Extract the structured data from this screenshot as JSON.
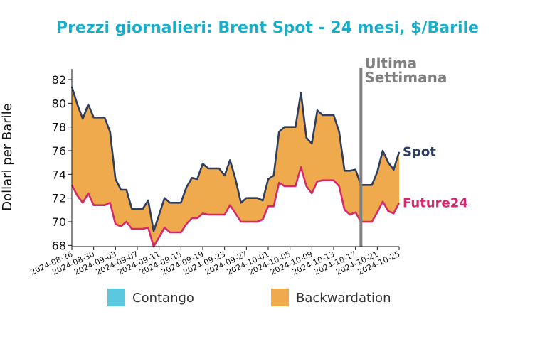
{
  "chart_data": {
    "type": "area",
    "title": "Prezzi giornalieri: Brent Spot - 24 mesi, $/Barile",
    "ylabel": "Dollari per Barile",
    "xlabel": "",
    "ylim": [
      67.9,
      82.9
    ],
    "yticks": [
      68,
      70,
      72,
      74,
      76,
      78,
      80,
      82
    ],
    "xtick_labels": [
      "2024-08-26",
      "2024-08-30",
      "2024-09-03",
      "2024-09-07",
      "2024-09-11",
      "2024-09-15",
      "2024-09-19",
      "2024-09-23",
      "2024-09-27",
      "2024-10-01",
      "2024-10-05",
      "2024-10-09",
      "2024-10-13",
      "2024-10-17",
      "2024-10-21",
      "2024-10-25"
    ],
    "x": [
      "2024-08-26",
      "2024-08-27",
      "2024-08-28",
      "2024-08-29",
      "2024-08-30",
      "2024-08-31",
      "2024-09-01",
      "2024-09-02",
      "2024-09-03",
      "2024-09-04",
      "2024-09-05",
      "2024-09-06",
      "2024-09-07",
      "2024-09-08",
      "2024-09-09",
      "2024-09-10",
      "2024-09-11",
      "2024-09-12",
      "2024-09-13",
      "2024-09-14",
      "2024-09-15",
      "2024-09-16",
      "2024-09-17",
      "2024-09-18",
      "2024-09-19",
      "2024-09-20",
      "2024-09-21",
      "2024-09-22",
      "2024-09-23",
      "2024-09-24",
      "2024-09-25",
      "2024-09-26",
      "2024-09-27",
      "2024-09-28",
      "2024-09-29",
      "2024-09-30",
      "2024-10-01",
      "2024-10-02",
      "2024-10-03",
      "2024-10-04",
      "2024-10-05",
      "2024-10-06",
      "2024-10-07",
      "2024-10-08",
      "2024-10-09",
      "2024-10-10",
      "2024-10-11",
      "2024-10-12",
      "2024-10-13",
      "2024-10-14",
      "2024-10-15",
      "2024-10-16",
      "2024-10-17",
      "2024-10-18",
      "2024-10-19",
      "2024-10-20",
      "2024-10-21",
      "2024-10-22",
      "2024-10-23",
      "2024-10-24",
      "2024-10-25"
    ],
    "series": [
      {
        "name": "Spot",
        "color": "#2f3e5e",
        "values": [
          81.4,
          79.9,
          78.7,
          79.9,
          78.8,
          78.8,
          78.8,
          77.6,
          73.6,
          72.7,
          72.7,
          71.1,
          71.1,
          71.1,
          71.8,
          69.2,
          70.6,
          72.0,
          71.6,
          71.6,
          71.6,
          72.9,
          73.7,
          73.6,
          74.9,
          74.5,
          74.5,
          74.5,
          73.9,
          75.2,
          73.6,
          71.6,
          72.0,
          72.0,
          72.0,
          71.8,
          73.6,
          73.9,
          77.6,
          78.0,
          78.0,
          78.0,
          80.9,
          77.1,
          76.6,
          79.4,
          79.0,
          79.0,
          79.0,
          77.6,
          74.3,
          74.3,
          74.4,
          73.1,
          73.1,
          73.1,
          74.2,
          76.0,
          75.0,
          74.4,
          75.9
        ]
      },
      {
        "name": "Future24",
        "color": "#d6286c",
        "values": [
          73.1,
          72.2,
          71.6,
          72.4,
          71.4,
          71.4,
          71.4,
          71.6,
          69.8,
          69.6,
          70.0,
          69.4,
          69.4,
          69.4,
          69.5,
          67.9,
          68.7,
          69.5,
          69.1,
          69.1,
          69.1,
          69.8,
          70.3,
          70.3,
          70.7,
          70.6,
          70.6,
          70.6,
          70.6,
          71.4,
          70.7,
          70.0,
          70.0,
          70.0,
          70.0,
          70.2,
          71.3,
          71.3,
          73.3,
          73.0,
          73.0,
          73.0,
          74.6,
          73.0,
          72.4,
          73.4,
          73.5,
          73.5,
          73.5,
          73.0,
          71.0,
          70.6,
          70.8,
          70.0,
          70.0,
          70.0,
          70.8,
          71.7,
          70.9,
          70.7,
          71.6
        ]
      }
    ],
    "annotation": {
      "text_lines": [
        "Ultima",
        "Settimana"
      ],
      "x": "2024-10-18"
    },
    "legend": {
      "placement": "bottom",
      "items": [
        {
          "label": "Contango",
          "color": "#5bc8e0"
        },
        {
          "label": "Backwardation",
          "color": "#eeaa4c"
        }
      ]
    },
    "colors": {
      "title": "#1aadc8",
      "backwardation": "#eeaa4c",
      "contango": "#5bc8e0",
      "annotation": "#808080"
    },
    "grid": false
  }
}
